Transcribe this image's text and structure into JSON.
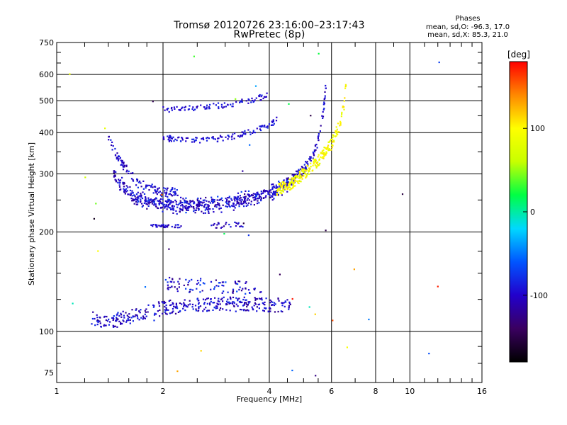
{
  "header": {
    "title_line1": "Tromsø 20120726 23:16:00–23:17:43",
    "title_line2": "RwPretec (8p)"
  },
  "phases": {
    "heading": "Phases",
    "line_o": "mean, sd,O: -96.3, 17.0",
    "line_x": "mean, sd,X: 85.3, 21.0"
  },
  "colorbar": {
    "unit_label": "[deg]",
    "ticks": [
      {
        "value": 100,
        "label": "100"
      },
      {
        "value": 0,
        "label": "0"
      },
      {
        "value": -100,
        "label": "-100"
      }
    ],
    "range": [
      -180,
      180
    ],
    "colors": [
      "#000000",
      "#3a0060",
      "#2200cc",
      "#0055ff",
      "#00d8ff",
      "#00ff44",
      "#c8ff00",
      "#ffff00",
      "#ff8800",
      "#ff0000"
    ]
  },
  "chart_data": {
    "type": "scatter",
    "title": "Tromsø 20120726 23:16:00–23:17:43",
    "subtitle": "RwPretec (8p)",
    "xlabel": "Frequency [MHz]",
    "ylabel": "Stationary phase Virtual Height [km]",
    "x_scale": "log",
    "y_scale": "log",
    "xlim": [
      1,
      16
    ],
    "ylim": [
      70,
      750
    ],
    "x_ticks": [
      1,
      2,
      4,
      6,
      8,
      10,
      16
    ],
    "x_tick_labels": [
      "1",
      "2",
      "4",
      "6",
      "8",
      "10",
      "16"
    ],
    "y_ticks": [
      75,
      100,
      200,
      300,
      400,
      500,
      600,
      750
    ],
    "y_tick_labels": [
      "75",
      "100",
      "200",
      "300",
      "400",
      "500",
      "600",
      "750"
    ],
    "major_grid_x": [
      2,
      4,
      6,
      8,
      10
    ],
    "major_grid_y": [
      100,
      200,
      300,
      400,
      500,
      600
    ],
    "color_encoding": "phase [deg]",
    "o_trace": [
      [
        1.45,
        300
      ],
      [
        1.5,
        285
      ],
      [
        1.6,
        262
      ],
      [
        1.8,
        248
      ],
      [
        2.0,
        243
      ],
      [
        2.2,
        241
      ],
      [
        2.5,
        241
      ],
      [
        2.8,
        243
      ],
      [
        3.0,
        245
      ],
      [
        3.5,
        252
      ],
      [
        4.0,
        262
      ],
      [
        4.5,
        280
      ],
      [
        5.0,
        310
      ],
      [
        5.3,
        340
      ],
      [
        5.5,
        380
      ],
      [
        5.65,
        440
      ],
      [
        5.75,
        520
      ],
      [
        5.8,
        580
      ]
    ],
    "x_trace": [
      [
        4.2,
        268
      ],
      [
        4.6,
        280
      ],
      [
        5.0,
        300
      ],
      [
        5.5,
        330
      ],
      [
        6.0,
        370
      ],
      [
        6.3,
        420
      ],
      [
        6.5,
        480
      ],
      [
        6.6,
        560
      ]
    ],
    "e_layer": [
      [
        1.25,
        110
      ],
      [
        1.4,
        107
      ],
      [
        1.7,
        112
      ],
      [
        2.0,
        118
      ],
      [
        2.5,
        120
      ],
      [
        3.0,
        121
      ],
      [
        3.5,
        121
      ],
      [
        4.0,
        120
      ]
    ],
    "upper_echoes": [
      [
        2.0,
        385
      ],
      [
        2.5,
        380
      ],
      [
        3.0,
        385
      ],
      [
        3.5,
        400
      ],
      [
        4.0,
        420
      ],
      [
        4.2,
        440
      ],
      [
        2.0,
        470
      ],
      [
        2.5,
        475
      ],
      [
        3.0,
        485
      ],
      [
        3.5,
        500
      ],
      [
        4.0,
        520
      ]
    ]
  }
}
